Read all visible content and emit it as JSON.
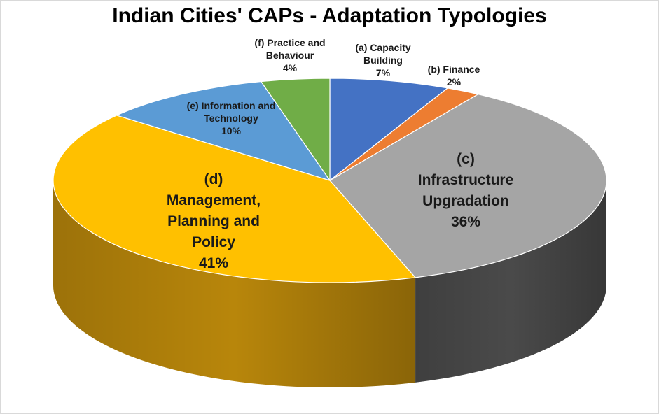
{
  "chart_data": {
    "type": "pie",
    "title": "Indian Cities' CAPs - Adaptation Typologies",
    "slices": [
      {
        "label_lines": [
          "(a) Capacity",
          "Building"
        ],
        "value": 7,
        "pct_label": "7%",
        "color": "#4472c4",
        "side": "#2f5597"
      },
      {
        "label_lines": [
          "(b) Finance"
        ],
        "value": 2,
        "pct_label": "2%",
        "color": "#ed7d31",
        "side": "#b55a1e"
      },
      {
        "label_lines": [
          "(c)",
          "Infrastructure",
          "Upgradation"
        ],
        "value": 36,
        "pct_label": "36%",
        "color": "#a5a5a5",
        "side": "#4a4a4a"
      },
      {
        "label_lines": [
          "(d)",
          "Management,",
          "Planning and",
          "Policy"
        ],
        "value": 41,
        "pct_label": "41%",
        "color": "#ffc000",
        "side": "#b8860b"
      },
      {
        "label_lines": [
          "(e) Information and",
          "Technology"
        ],
        "value": 10,
        "pct_label": "10%",
        "color": "#5b9bd5",
        "side": "#3a6fa0"
      },
      {
        "label_lines": [
          "(f) Practice and",
          "Behaviour"
        ],
        "value": 4,
        "pct_label": "4%",
        "color": "#70ad47",
        "side": "#4d7a30"
      }
    ]
  }
}
